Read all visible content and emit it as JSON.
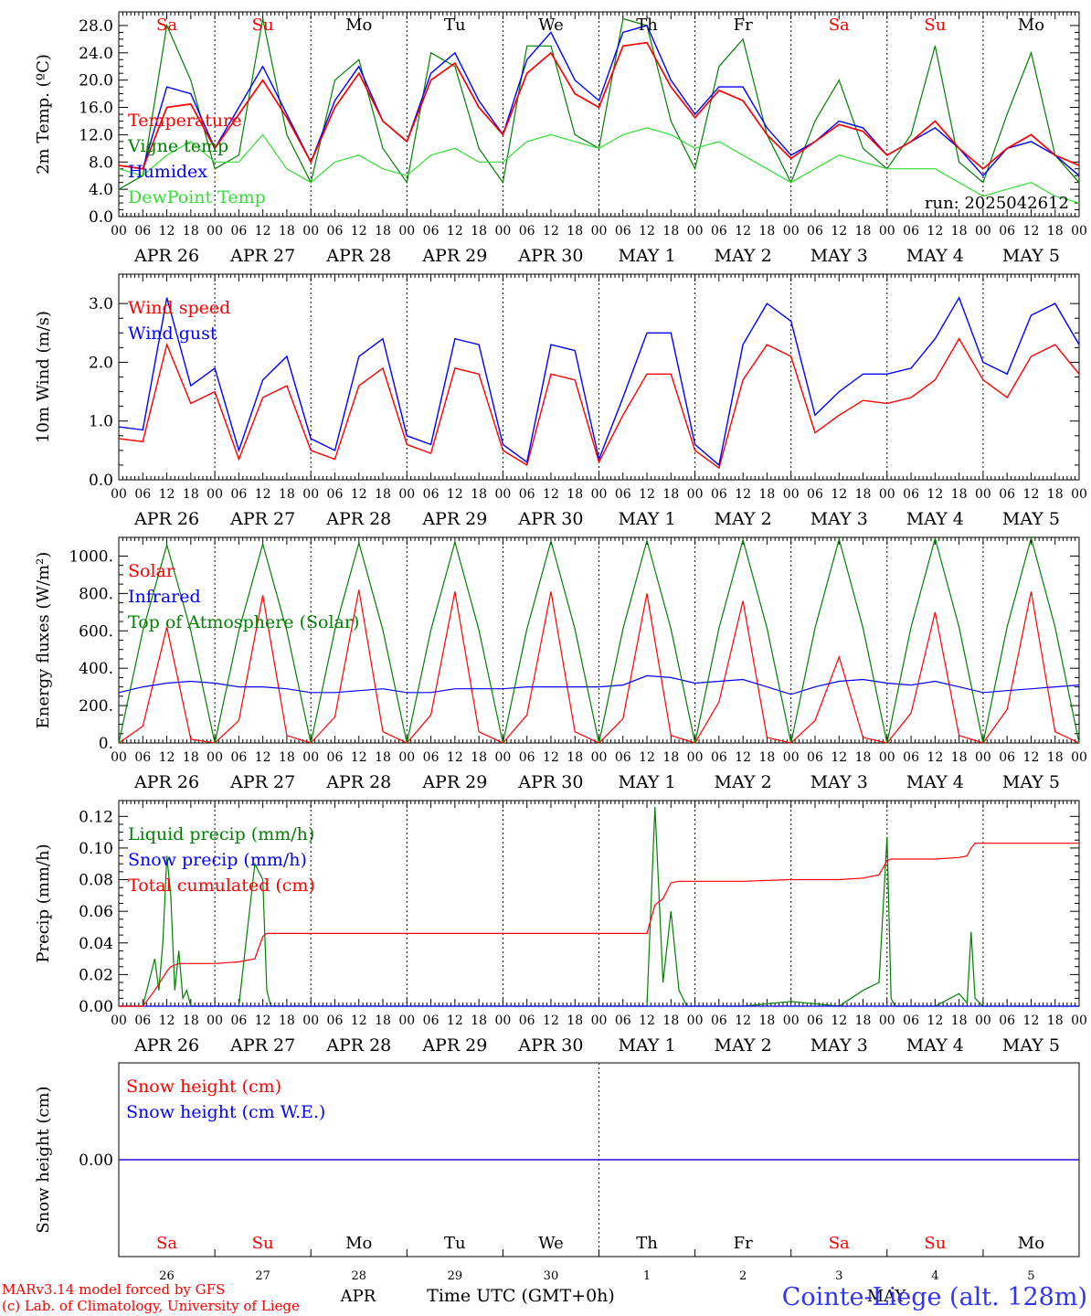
{
  "colors": {
    "red": "#ff0000",
    "green": "#008000",
    "blue": "#0000ff",
    "lightgreen": "#33dd33",
    "black": "#000000"
  },
  "days": {
    "weekdays": [
      "Sa",
      "Su",
      "Mo",
      "Tu",
      "We",
      "Th",
      "Fr",
      "Sa",
      "Su",
      "Mo"
    ],
    "weekday_colors": [
      "#ff0000",
      "#ff0000",
      "#000000",
      "#000000",
      "#000000",
      "#000000",
      "#000000",
      "#ff0000",
      "#ff0000",
      "#000000"
    ],
    "date_labels": [
      "APR 26",
      "APR 27",
      "APR 28",
      "APR 29",
      "APR 30",
      "MAY  1",
      "MAY  2",
      "MAY  3",
      "MAY  4",
      "MAY  5"
    ],
    "day_numbers": [
      "26",
      "27",
      "28",
      "29",
      "30",
      "1",
      "2",
      "3",
      "4",
      "5"
    ],
    "hour_labels": [
      "00",
      "06",
      "12",
      "18"
    ],
    "final_hour_label": "00"
  },
  "footer": {
    "credit_line1": "MARv3.14 model forced by GFS",
    "credit_line2": "(c) Lab. of Climatology, University of Liege",
    "month_apr": "APR",
    "month_may": "MAY",
    "time_label": "Time UTC (GMT+0h)",
    "station": "Cointe-Liege (alt. 128m)"
  },
  "chart_data": [
    {
      "type": "line",
      "ylabel": "2m Temp. (ºC)",
      "ylim": [
        0,
        30
      ],
      "yticks": [
        "0.0",
        "4.0",
        "8.0",
        "12.0",
        "16.0",
        "20.0",
        "24.0",
        "28.0"
      ],
      "annotation": "run: 2025042612",
      "x_hours": [
        0,
        6,
        12,
        18,
        24,
        30,
        36,
        42,
        48,
        54,
        60,
        66,
        72,
        78,
        84,
        90,
        96,
        102,
        108,
        114,
        120,
        126,
        132,
        138,
        144,
        150,
        156,
        162,
        168,
        174,
        180,
        186,
        192,
        198,
        204,
        210,
        216,
        222,
        228,
        234,
        240
      ],
      "series": [
        {
          "name": "Temperature",
          "color": "#ff0000",
          "values": [
            7.5,
            7,
            16,
            16.5,
            10,
            15,
            20,
            14.5,
            8,
            16,
            21,
            14,
            11,
            20,
            22.5,
            16,
            12,
            21,
            24,
            18,
            16,
            25,
            25.5,
            19,
            14.5,
            18.5,
            17,
            12,
            8.5,
            11,
            13.5,
            12.5,
            9,
            11,
            14,
            10,
            7,
            10,
            12,
            9,
            7.5
          ]
        },
        {
          "name": "Vigne temp",
          "color": "#008000",
          "values": [
            4,
            6,
            28,
            20,
            7,
            9,
            29,
            12,
            5,
            20,
            23,
            10,
            5,
            24,
            22,
            10,
            5,
            25,
            25,
            12,
            10,
            29,
            28,
            14,
            7,
            22,
            26,
            12,
            5,
            14,
            20,
            10,
            7,
            12,
            25,
            8,
            5,
            15,
            24,
            9,
            5
          ]
        },
        {
          "name": "Humidex",
          "color": "#0000ff",
          "values": [
            7.5,
            7,
            19,
            18,
            10,
            16,
            22,
            15,
            8,
            17,
            22,
            14,
            11,
            21,
            24,
            17,
            12,
            23,
            27,
            20,
            17,
            27,
            28,
            20,
            15,
            19,
            19,
            13,
            9,
            11,
            14,
            13,
            9,
            11,
            13,
            10,
            6,
            10,
            11,
            9,
            6
          ]
        },
        {
          "name": "DewPoint Temp",
          "color": "#33dd33",
          "values": [
            7,
            6,
            9,
            11,
            8,
            8,
            12,
            7,
            5,
            8,
            9,
            7,
            6,
            9,
            10,
            8,
            8,
            11,
            12,
            11,
            10,
            12,
            13,
            12,
            10,
            11,
            9,
            7,
            5,
            7,
            9,
            8,
            7,
            7,
            7,
            5,
            3,
            4,
            5,
            3,
            2
          ]
        }
      ]
    },
    {
      "type": "line",
      "ylabel": "10m Wind (m/s)",
      "ylim": [
        0,
        3.5
      ],
      "yticks": [
        "0.0",
        "1.0",
        "2.0",
        "3.0"
      ],
      "x_hours": [
        0,
        6,
        12,
        18,
        24,
        30,
        36,
        42,
        48,
        54,
        60,
        66,
        72,
        78,
        84,
        90,
        96,
        102,
        108,
        114,
        120,
        126,
        132,
        138,
        144,
        150,
        156,
        162,
        168,
        174,
        180,
        186,
        192,
        198,
        204,
        210,
        216,
        222,
        228,
        234,
        240
      ],
      "series": [
        {
          "name": "Wind speed",
          "color": "#ff0000",
          "values": [
            0.7,
            0.65,
            2.3,
            1.3,
            1.5,
            0.35,
            1.4,
            1.6,
            0.5,
            0.35,
            1.6,
            1.9,
            0.6,
            0.45,
            1.9,
            1.8,
            0.5,
            0.25,
            1.8,
            1.7,
            0.3,
            1.1,
            1.8,
            1.8,
            0.5,
            0.2,
            1.7,
            2.3,
            2.1,
            0.8,
            1.1,
            1.35,
            1.3,
            1.4,
            1.7,
            2.4,
            1.7,
            1.4,
            2.1,
            2.3,
            1.8
          ]
        },
        {
          "name": "Wind gust",
          "color": "#0000ff",
          "values": [
            0.9,
            0.85,
            3.1,
            1.6,
            1.9,
            0.5,
            1.7,
            2.1,
            0.7,
            0.5,
            2.1,
            2.4,
            0.75,
            0.6,
            2.4,
            2.3,
            0.6,
            0.3,
            2.3,
            2.2,
            0.35,
            1.4,
            2.5,
            2.5,
            0.6,
            0.25,
            2.3,
            3.0,
            2.7,
            1.1,
            1.5,
            1.8,
            1.8,
            1.9,
            2.4,
            3.1,
            2.0,
            1.8,
            2.8,
            3.0,
            2.3
          ]
        }
      ]
    },
    {
      "type": "line",
      "ylabel": "Energy fluxes (W/m²)",
      "ylim": [
        0,
        1100
      ],
      "yticks": [
        "0.",
        "200.",
        "400.",
        "600.",
        "800.",
        "1000."
      ],
      "x_hours": [
        0,
        6,
        12,
        18,
        24,
        30,
        36,
        42,
        48,
        54,
        60,
        66,
        72,
        78,
        84,
        90,
        96,
        102,
        108,
        114,
        120,
        126,
        132,
        138,
        144,
        150,
        156,
        162,
        168,
        174,
        180,
        186,
        192,
        198,
        204,
        210,
        216,
        222,
        228,
        234,
        240
      ],
      "series": [
        {
          "name": "Solar",
          "color": "#ff0000",
          "values": [
            0,
            90,
            620,
            20,
            0,
            120,
            790,
            40,
            0,
            140,
            820,
            60,
            0,
            150,
            810,
            60,
            0,
            150,
            810,
            60,
            0,
            130,
            800,
            40,
            0,
            220,
            760,
            30,
            0,
            120,
            460,
            30,
            0,
            160,
            700,
            40,
            0,
            180,
            810,
            60,
            0
          ]
        },
        {
          "name": "Infrared",
          "color": "#0000ff",
          "values": [
            270,
            300,
            320,
            330,
            320,
            300,
            300,
            290,
            270,
            270,
            280,
            290,
            270,
            270,
            290,
            290,
            290,
            300,
            300,
            300,
            300,
            310,
            360,
            350,
            320,
            330,
            340,
            300,
            260,
            300,
            330,
            340,
            320,
            310,
            330,
            300,
            270,
            280,
            290,
            300,
            310
          ]
        },
        {
          "name": "Top of Atmosphere (Solar)",
          "color": "#008000",
          "values": [
            0,
            600,
            1060,
            600,
            0,
            600,
            1065,
            600,
            0,
            605,
            1070,
            605,
            0,
            605,
            1075,
            605,
            0,
            610,
            1080,
            610,
            0,
            610,
            1083,
            610,
            0,
            615,
            1087,
            615,
            0,
            615,
            1090,
            615,
            0,
            620,
            1094,
            620,
            0,
            620,
            1097,
            620,
            0
          ]
        }
      ]
    },
    {
      "type": "line",
      "ylabel": "Precip (mm/h)",
      "ylim": [
        0,
        0.13
      ],
      "yticks": [
        "0.00",
        "0.02",
        "0.04",
        "0.06",
        "0.08",
        "0.10",
        "0.12"
      ],
      "x_hours": [
        0,
        6,
        9,
        10,
        11,
        12,
        13,
        14,
        15,
        16,
        17,
        18,
        20,
        24,
        30,
        34,
        36,
        37,
        38,
        40,
        42,
        48,
        132,
        134,
        136,
        138,
        140,
        142,
        144,
        150,
        156,
        168,
        180,
        186,
        190,
        192,
        193,
        194,
        195,
        196,
        204,
        210,
        212,
        213,
        214,
        216,
        240
      ],
      "series": [
        {
          "name": "Liquid precip (mm/h)",
          "color": "#008000",
          "values": [
            0,
            0,
            0.03,
            0.01,
            0.04,
            0.095,
            0.07,
            0.01,
            0.035,
            0.005,
            0.01,
            0,
            0,
            0,
            0,
            0.09,
            0.08,
            0.01,
            0,
            0,
            0,
            0,
            0,
            0.126,
            0.015,
            0.06,
            0.01,
            0,
            0,
            0,
            0,
            0.003,
            0,
            0.01,
            0.015,
            0.107,
            0.005,
            0,
            0,
            0,
            0,
            0.008,
            0.002,
            0.047,
            0.005,
            0,
            0
          ]
        },
        {
          "name": "Snow precip (mm/h)",
          "color": "#0000ff",
          "values": [
            0,
            0,
            0,
            0,
            0,
            0,
            0,
            0,
            0,
            0,
            0,
            0,
            0,
            0,
            0,
            0,
            0,
            0,
            0,
            0,
            0,
            0,
            0,
            0,
            0,
            0,
            0,
            0,
            0,
            0,
            0,
            0,
            0,
            0,
            0,
            0,
            0,
            0,
            0,
            0,
            0,
            0,
            0,
            0,
            0,
            0,
            0
          ]
        },
        {
          "name": "Total cumulated (cm)",
          "color": "#ff0000",
          "values": [
            0,
            0,
            0.01,
            0.014,
            0.018,
            0.022,
            0.025,
            0.026,
            0.027,
            0.027,
            0.027,
            0.027,
            0.027,
            0.027,
            0.028,
            0.03,
            0.044,
            0.046,
            0.046,
            0.046,
            0.046,
            0.046,
            0.046,
            0.064,
            0.068,
            0.078,
            0.079,
            0.079,
            0.079,
            0.079,
            0.079,
            0.08,
            0.08,
            0.081,
            0.083,
            0.092,
            0.093,
            0.093,
            0.093,
            0.093,
            0.093,
            0.094,
            0.095,
            0.1,
            0.103,
            0.103,
            0.103
          ]
        }
      ]
    },
    {
      "type": "line",
      "ylabel": "Snow height (cm)",
      "yticks": [
        "0.00"
      ],
      "x_hours": [
        0,
        240
      ],
      "series": [
        {
          "name": "Snow height (cm)",
          "color": "#ff0000",
          "values": [
            0,
            0
          ]
        },
        {
          "name": "Snow height (cm W.E.)",
          "color": "#0000ff",
          "values": [
            0,
            0
          ]
        }
      ]
    }
  ]
}
